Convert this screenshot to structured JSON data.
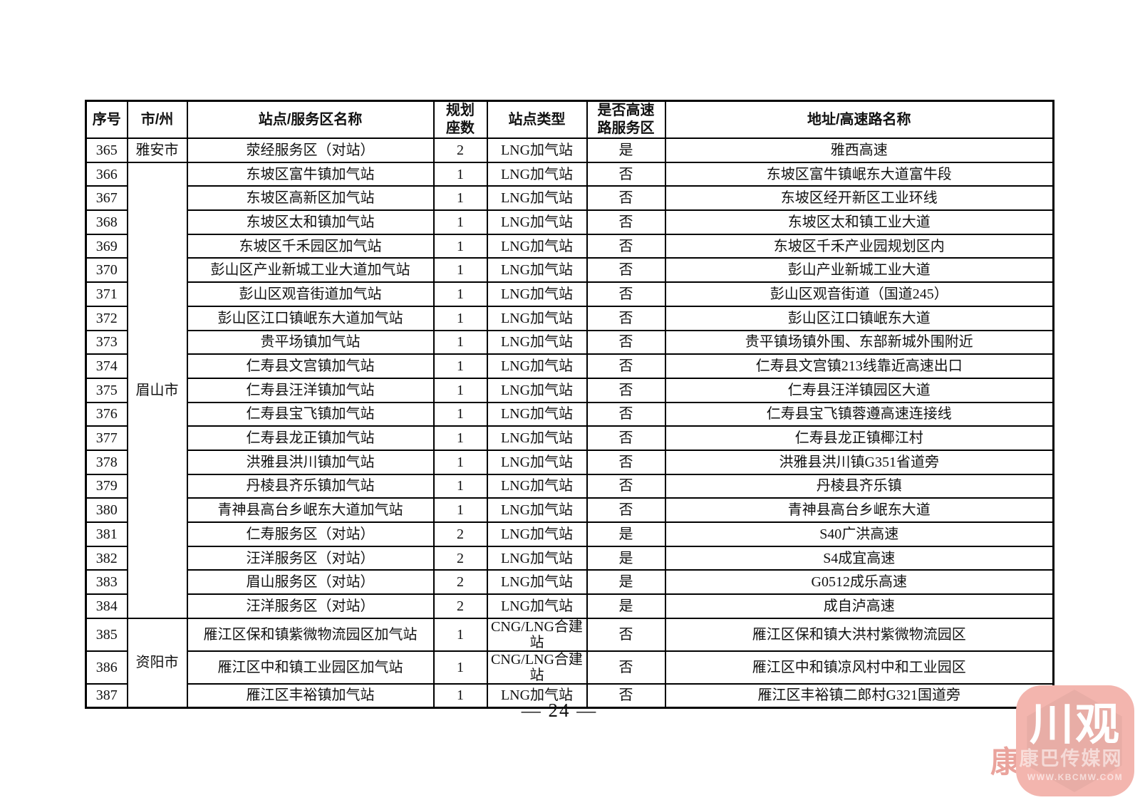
{
  "page": {
    "number": "— 24 —"
  },
  "colors": {
    "border": "#000000",
    "text": "#111111",
    "watermark_square": "#f3b5ae",
    "watermark_fragment": "#e7938b"
  },
  "table": {
    "headers": [
      "序号",
      "市/州",
      "站点/服务区名称",
      "规划\n座数",
      "站点类型",
      "是否高速\n路服务区",
      "地址/高速路名称"
    ],
    "rows": [
      {
        "no": "365",
        "city": "雅安市",
        "citySpan": 1,
        "name": "荥经服务区（对站）",
        "count": "2",
        "type": "LNG加气站",
        "highway": "是",
        "address": "雅西高速"
      },
      {
        "no": "366",
        "city": "眉山市",
        "citySpan": 19,
        "name": "东坡区富牛镇加气站",
        "count": "1",
        "type": "LNG加气站",
        "highway": "否",
        "address": "东坡区富牛镇岷东大道富牛段"
      },
      {
        "no": "367",
        "name": "东坡区高新区加气站",
        "count": "1",
        "type": "LNG加气站",
        "highway": "否",
        "address": "东坡区经开新区工业环线"
      },
      {
        "no": "368",
        "name": "东坡区太和镇加气站",
        "count": "1",
        "type": "LNG加气站",
        "highway": "否",
        "address": "东坡区太和镇工业大道"
      },
      {
        "no": "369",
        "name": "东坡区千禾园区加气站",
        "count": "1",
        "type": "LNG加气站",
        "highway": "否",
        "address": "东坡区千禾产业园规划区内"
      },
      {
        "no": "370",
        "name": "彭山区产业新城工业大道加气站",
        "count": "1",
        "type": "LNG加气站",
        "highway": "否",
        "address": "彭山产业新城工业大道"
      },
      {
        "no": "371",
        "name": "彭山区观音街道加气站",
        "count": "1",
        "type": "LNG加气站",
        "highway": "否",
        "address": "彭山区观音街道（国道245）"
      },
      {
        "no": "372",
        "name": "彭山区江口镇岷东大道加气站",
        "count": "1",
        "type": "LNG加气站",
        "highway": "否",
        "address": "彭山区江口镇岷东大道"
      },
      {
        "no": "373",
        "name": "贵平场镇加气站",
        "count": "1",
        "type": "LNG加气站",
        "highway": "否",
        "address": "贵平镇场镇外围、东部新城外围附近"
      },
      {
        "no": "374",
        "name": "仁寿县文宫镇加气站",
        "count": "1",
        "type": "LNG加气站",
        "highway": "否",
        "address": "仁寿县文宫镇213线靠近高速出口"
      },
      {
        "no": "375",
        "name": "仁寿县汪洋镇加气站",
        "count": "1",
        "type": "LNG加气站",
        "highway": "否",
        "address": "仁寿县汪洋镇园区大道"
      },
      {
        "no": "376",
        "name": "仁寿县宝飞镇加气站",
        "count": "1",
        "type": "LNG加气站",
        "highway": "否",
        "address": "仁寿县宝飞镇蓉遵高速连接线"
      },
      {
        "no": "377",
        "name": "仁寿县龙正镇加气站",
        "count": "1",
        "type": "LNG加气站",
        "highway": "否",
        "address": "仁寿县龙正镇椰江村"
      },
      {
        "no": "378",
        "name": "洪雅县洪川镇加气站",
        "count": "1",
        "type": "LNG加气站",
        "highway": "否",
        "address": "洪雅县洪川镇G351省道旁"
      },
      {
        "no": "379",
        "name": "丹棱县齐乐镇加气站",
        "count": "1",
        "type": "LNG加气站",
        "highway": "否",
        "address": "丹棱县齐乐镇"
      },
      {
        "no": "380",
        "name": "青神县高台乡岷东大道加气站",
        "count": "1",
        "type": "LNG加气站",
        "highway": "否",
        "address": "青神县高台乡岷东大道"
      },
      {
        "no": "381",
        "name": "仁寿服务区（对站）",
        "count": "2",
        "type": "LNG加气站",
        "highway": "是",
        "address": "S40广洪高速"
      },
      {
        "no": "382",
        "name": "汪洋服务区（对站）",
        "count": "2",
        "type": "LNG加气站",
        "highway": "是",
        "address": "S4成宜高速"
      },
      {
        "no": "383",
        "name": "眉山服务区（对站）",
        "count": "2",
        "type": "LNG加气站",
        "highway": "是",
        "address": "G0512成乐高速"
      },
      {
        "no": "384",
        "name": "汪洋服务区（对站）",
        "count": "2",
        "type": "LNG加气站",
        "highway": "是",
        "address": "成自泸高速"
      },
      {
        "no": "385",
        "city": "资阳市",
        "citySpan": 3,
        "name": "雁江区保和镇紫微物流园区加气站",
        "count": "1",
        "type": "CNG/LNG合建站",
        "highway": "否",
        "address": "雁江区保和镇大洪村紫微物流园区"
      },
      {
        "no": "386",
        "name": "雁江区中和镇工业园区加气站",
        "count": "1",
        "type": "CNG/LNG合建站",
        "highway": "否",
        "address": "雁江区中和镇凉风村中和工业园区"
      },
      {
        "no": "387",
        "name": "雁江区丰裕镇加气站",
        "count": "1",
        "type": "LNG加气站",
        "highway": "否",
        "address": "雁江区丰裕镇二郎村G321国道旁"
      }
    ]
  },
  "watermark": {
    "brand": "川观",
    "subtitle": "康巴传媒网",
    "url": "WWW.KBCMW.COM",
    "fragment": "康"
  }
}
